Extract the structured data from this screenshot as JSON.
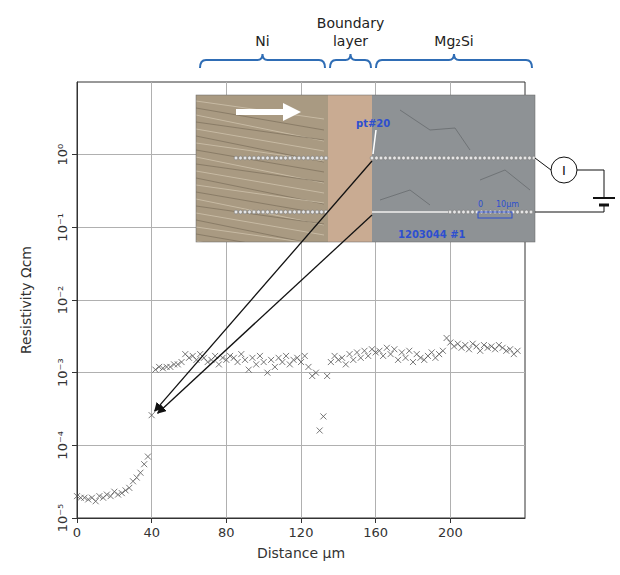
{
  "chart_data": {
    "type": "scatter",
    "x_label": "Distance μm",
    "y_label": "Resistivity Ωcm",
    "x": [
      0,
      2,
      4,
      6,
      8,
      10,
      12,
      14,
      16,
      18,
      20,
      22,
      24,
      26,
      28,
      30,
      32,
      34,
      36,
      38,
      40,
      42,
      44,
      46,
      48,
      50,
      52,
      54,
      56,
      58,
      60,
      62,
      64,
      66,
      68,
      70,
      72,
      74,
      76,
      78,
      80,
      82,
      84,
      86,
      88,
      90,
      92,
      94,
      96,
      98,
      100,
      102,
      104,
      106,
      108,
      110,
      112,
      114,
      116,
      118,
      120,
      122,
      124,
      126,
      128,
      130,
      132,
      134,
      136,
      138,
      140,
      142,
      144,
      146,
      148,
      150,
      152,
      154,
      156,
      158,
      160,
      162,
      164,
      166,
      168,
      170,
      172,
      174,
      176,
      178,
      180,
      182,
      184,
      186,
      188,
      190,
      192,
      194,
      196,
      198,
      200,
      202,
      204,
      206,
      208,
      210,
      212,
      214,
      216,
      218,
      220,
      222,
      224,
      226,
      228,
      230,
      232,
      234,
      236
    ],
    "values": [
      2e-05,
      1.9e-05,
      1.9e-05,
      1.8e-05,
      1.9e-05,
      1.7e-05,
      2e-05,
      1.9e-05,
      2.1e-05,
      2e-05,
      2.3e-05,
      2.1e-05,
      2.2e-05,
      2.4e-05,
      2.6e-05,
      3.2e-05,
      3.6e-05,
      4.2e-05,
      5.5e-05,
      7e-05,
      0.00026,
      0.0011,
      0.0012,
      0.00115,
      0.0012,
      0.0012,
      0.0013,
      0.0013,
      0.0014,
      0.0018,
      0.0016,
      0.0017,
      0.0015,
      0.0018,
      0.0016,
      0.0014,
      0.0015,
      0.0017,
      0.0013,
      0.0016,
      0.0015,
      0.0017,
      0.0016,
      0.0014,
      0.0018,
      0.0015,
      0.0011,
      0.0016,
      0.0013,
      0.0017,
      0.0014,
      0.001,
      0.0015,
      0.0012,
      0.0016,
      0.0014,
      0.0017,
      0.0013,
      0.0015,
      0.0016,
      0.0014,
      0.0017,
      0.0012,
      0.0009,
      0.001,
      0.00016,
      0.00025,
      0.0009,
      0.0014,
      0.0017,
      0.0015,
      0.0016,
      0.0013,
      0.0018,
      0.0015,
      0.0019,
      0.0016,
      0.002,
      0.0017,
      0.0021,
      0.0019,
      0.002,
      0.0017,
      0.0022,
      0.0018,
      0.0021,
      0.0015,
      0.0019,
      0.0016,
      0.002,
      0.0014,
      0.0018,
      0.0016,
      0.0015,
      0.0017,
      0.0019,
      0.0016,
      0.0018,
      0.002,
      0.003,
      0.0026,
      0.0023,
      0.0025,
      0.0022,
      0.0024,
      0.0021,
      0.0025,
      0.0023,
      0.002,
      0.0024,
      0.0022,
      0.0023,
      0.0021,
      0.0024,
      0.0022,
      0.002,
      0.0021,
      0.0018,
      0.002
    ],
    "color": "#555555",
    "marker": "x",
    "log": "y",
    "grid": true,
    "xlim": [
      0,
      240
    ],
    "xticks": [
      0,
      40,
      80,
      120,
      160,
      200
    ],
    "ylim": [
      1e-05,
      10
    ],
    "yticks": [
      {
        "value": 1e-05,
        "label": "10⁻⁵"
      },
      {
        "value": 0.0001,
        "label": "10⁻⁴"
      },
      {
        "value": 0.001,
        "label": "10⁻³"
      },
      {
        "value": 0.01,
        "label": "10⁻²"
      },
      {
        "value": 0.1,
        "label": "10⁻¹"
      },
      {
        "value": 1,
        "label": "10⁰"
      }
    ],
    "annotations": {
      "regions": [
        "Ni",
        "Boundary layer",
        "Mg₂Si"
      ],
      "point_label": "pt#20",
      "sample_label": "1203044 #1",
      "scale_bar": [
        "0",
        "10μm"
      ],
      "meter": "I"
    }
  }
}
